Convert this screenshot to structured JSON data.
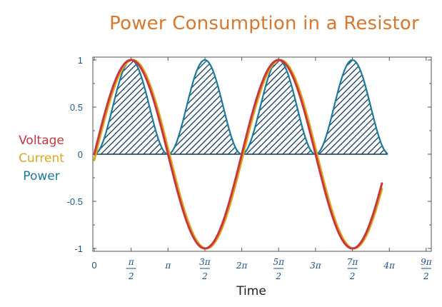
{
  "chart_data": {
    "type": "line",
    "title": "Power Consumption in a Resistor",
    "xlabel": "Time",
    "ylabel": "",
    "xlim": [
      0,
      4.5
    ],
    "ylim": [
      -1,
      1
    ],
    "x_unit": "pi",
    "yticks": [
      {
        "value": 1,
        "label": "1"
      },
      {
        "value": 0.5,
        "label": "0.5"
      },
      {
        "value": 0,
        "label": "0"
      },
      {
        "value": -0.5,
        "label": "-0.5"
      },
      {
        "value": -1,
        "label": "-1"
      }
    ],
    "xticks": [
      {
        "value": 0,
        "num": "0",
        "den": ""
      },
      {
        "value": 0.5,
        "num": "π",
        "den": "2"
      },
      {
        "value": 1,
        "num": "π",
        "den": ""
      },
      {
        "value": 1.5,
        "num": "3π",
        "den": "2"
      },
      {
        "value": 2,
        "num": "2π",
        "den": ""
      },
      {
        "value": 2.5,
        "num": "5π",
        "den": "2"
      },
      {
        "value": 3,
        "num": "3π",
        "den": ""
      },
      {
        "value": 3.5,
        "num": "7π",
        "den": "2"
      },
      {
        "value": 4,
        "num": "4π",
        "den": ""
      },
      {
        "value": 4.5,
        "num": "9π",
        "den": "2"
      }
    ],
    "series": [
      {
        "name": "Voltage",
        "function": "sin(t)",
        "phase_pi": 0,
        "amplitude": 1,
        "t_range_pi": [
          0,
          3.9
        ],
        "color": "#c8363e"
      },
      {
        "name": "Current",
        "function": "sin(t)",
        "phase_pi": -0.02,
        "amplitude": 1,
        "t_range_pi": [
          0,
          3.9
        ],
        "color": "#e0a81a"
      },
      {
        "name": "Power",
        "function": "sin(t)^2",
        "phase_pi": 0,
        "amplitude": 1,
        "t_range_pi": [
          0,
          3.98
        ],
        "color": "#1a7a9c",
        "fill": "hatched"
      }
    ]
  },
  "legend": {
    "items": [
      {
        "label": "Voltage",
        "color": "#c8363e"
      },
      {
        "label": "Current",
        "color": "#e0a81a"
      },
      {
        "label": "Power",
        "color": "#1a7a9c"
      }
    ]
  }
}
